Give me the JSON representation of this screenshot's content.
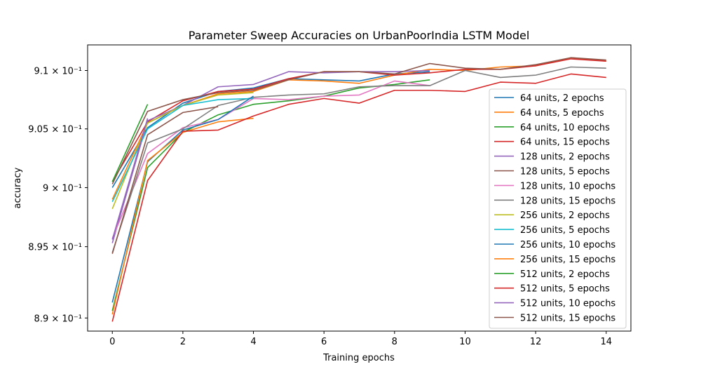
{
  "chart_data": {
    "type": "line",
    "title": "Parameter Sweep Accuracies on UrbanPoorIndia LSTM Model",
    "xlabel": "Training epochs",
    "ylabel": "accuracy",
    "xlim": [
      -0.7,
      14.7
    ],
    "ylim": [
      0.8879,
      0.9122
    ],
    "yscale": "log",
    "grid": false,
    "legend_position": "center-right",
    "x_ticks": [
      0,
      2,
      4,
      6,
      8,
      10,
      12,
      14
    ],
    "x_tick_labels": [
      "0",
      "2",
      "4",
      "6",
      "8",
      "10",
      "12",
      "14"
    ],
    "y_ticks": [
      0.889,
      0.895,
      0.9,
      0.905,
      0.91
    ],
    "y_tick_labels": [
      "8.9 × 10⁻¹",
      "8.95 × 10⁻¹",
      "9 × 10⁻¹",
      "9.05 × 10⁻¹",
      "9.1 × 10⁻¹"
    ],
    "series": [
      {
        "name": "64 units, 2 epochs",
        "color": "#1f77b4",
        "x": [
          0,
          1,
          2,
          3,
          4,
          5,
          6,
          7,
          8,
          9
        ],
        "y": [
          0.9,
          0.9051,
          0.9072,
          0.9082,
          0.9085,
          0.9093,
          0.9092,
          0.9091,
          0.9097,
          0.9099
        ]
      },
      {
        "name": "64 units, 5 epochs",
        "color": "#ff7f0e",
        "x": [
          0,
          1,
          2,
          3,
          4,
          5,
          6,
          7,
          8,
          9,
          10,
          11,
          12,
          13,
          14
        ],
        "y": [
          0.899,
          0.9055,
          0.907,
          0.908,
          0.9082,
          0.9092,
          0.9091,
          0.9089,
          0.9096,
          0.9101,
          0.91,
          0.9103,
          0.9104,
          0.9111,
          0.9108
        ]
      },
      {
        "name": "64 units, 10 epochs",
        "color": "#2ca02c",
        "x": [
          0,
          1,
          2,
          3,
          4,
          5,
          6,
          7,
          8,
          9
        ],
        "y": [
          0.8896,
          0.9017,
          0.9047,
          0.9062,
          0.9071,
          0.9074,
          0.9078,
          0.9085,
          0.9088,
          0.9092
        ]
      },
      {
        "name": "64 units, 15 epochs",
        "color": "#d62728",
        "x": [
          0,
          1,
          2,
          3,
          4,
          5,
          6,
          7,
          8,
          9,
          10,
          11,
          12,
          13,
          14
        ],
        "y": [
          0.9005,
          0.9056,
          0.9074,
          0.9082,
          0.9084,
          0.9093,
          0.9099,
          0.9099,
          0.9096,
          0.9098,
          0.9101,
          0.9101,
          0.9104,
          0.911,
          0.9108
        ]
      },
      {
        "name": "128 units, 2 epochs",
        "color": "#9467bd",
        "x": [
          0,
          1,
          2,
          3,
          4,
          5,
          6,
          7,
          8,
          9
        ],
        "y": [
          0.8953,
          0.9057,
          0.907,
          0.9086,
          0.9088,
          0.9099,
          0.9098,
          0.9099,
          0.9099,
          0.91
        ]
      },
      {
        "name": "128 units, 5 epochs",
        "color": "#8c564b",
        "x": [
          0,
          1,
          2,
          3,
          4,
          5,
          6,
          7,
          8,
          9,
          10,
          11,
          12,
          13,
          14
        ],
        "y": [
          0.9003,
          0.9065,
          0.9075,
          0.9081,
          0.9083,
          0.9092,
          0.9099,
          0.9099,
          0.9097,
          0.9106,
          0.9102,
          0.9101,
          0.9105,
          0.9111,
          0.9109
        ]
      },
      {
        "name": "128 units, 10 epochs",
        "color": "#e377c2",
        "x": [
          0,
          1,
          2,
          3,
          4,
          5,
          6,
          7,
          8,
          9
        ],
        "y": [
          0.8957,
          0.9029,
          0.9051,
          0.9058,
          0.9076,
          0.9075,
          0.9078,
          0.9079,
          0.9091,
          0.9087
        ]
      },
      {
        "name": "128 units, 15 epochs",
        "color": "#7f7f7f",
        "x": [
          0,
          1,
          2,
          3,
          4,
          5,
          6,
          7,
          8,
          9,
          10,
          11,
          12,
          13,
          14
        ],
        "y": [
          0.8945,
          0.9038,
          0.905,
          0.907,
          0.9077,
          0.9079,
          0.908,
          0.9086,
          0.9087,
          0.9087,
          0.91,
          0.9094,
          0.9096,
          0.9103,
          0.9102
        ]
      },
      {
        "name": "256 units, 2 epochs",
        "color": "#bcbd22",
        "x": [
          0,
          1,
          2,
          3,
          4
        ],
        "y": [
          0.8982,
          0.9055,
          0.907,
          0.9079,
          0.9081
        ]
      },
      {
        "name": "256 units, 5 epochs",
        "color": "#17becf",
        "x": [
          0,
          1,
          2,
          3,
          4
        ],
        "y": [
          0.8988,
          0.905,
          0.907,
          0.9075,
          0.9076
        ]
      },
      {
        "name": "256 units, 10 epochs",
        "color": "#1f77b4",
        "x": [
          0,
          1,
          2,
          3,
          4
        ],
        "y": [
          0.8903,
          0.9022,
          0.9049,
          0.9058,
          0.9078
        ]
      },
      {
        "name": "256 units, 15 epochs",
        "color": "#ff7f0e",
        "x": [
          0,
          1,
          2,
          3,
          4
        ],
        "y": [
          0.8893,
          0.9023,
          0.9047,
          0.9056,
          0.9059
        ]
      },
      {
        "name": "512 units, 2 epochs",
        "color": "#2ca02c",
        "x": [
          0,
          1
        ],
        "y": [
          0.9005,
          0.9071
        ]
      },
      {
        "name": "512 units, 5 epochs",
        "color": "#d62728",
        "x": [
          0,
          1,
          2,
          3,
          4,
          5,
          6,
          7,
          8,
          9,
          10,
          11,
          12,
          13,
          14
        ],
        "y": [
          0.8887,
          0.9006,
          0.9048,
          0.9049,
          0.9061,
          0.9071,
          0.9076,
          0.9072,
          0.9083,
          0.9083,
          0.9082,
          0.909,
          0.9089,
          0.9097,
          0.9094
        ]
      },
      {
        "name": "512 units, 10 epochs",
        "color": "#9467bd",
        "x": [
          0,
          1
        ],
        "y": [
          0.8956,
          0.9059
        ]
      },
      {
        "name": "512 units, 15 epochs",
        "color": "#8c564b",
        "x": [
          0,
          1,
          2,
          3
        ],
        "y": [
          0.8944,
          0.9045,
          0.9064,
          0.9069
        ]
      }
    ]
  }
}
